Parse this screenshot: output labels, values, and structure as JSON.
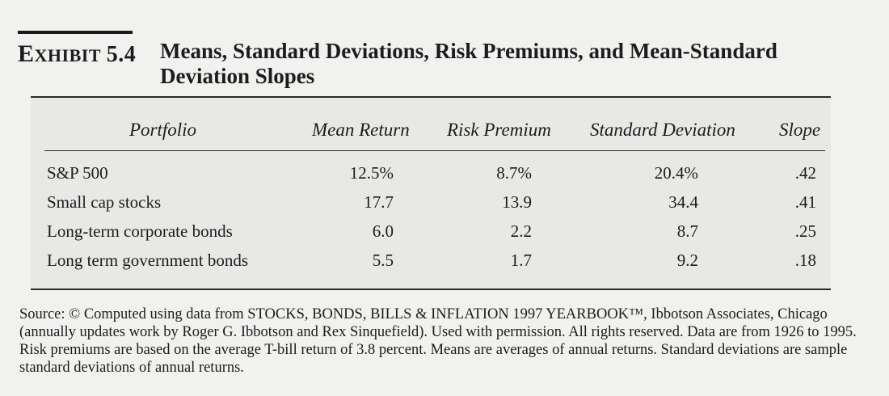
{
  "exhibit": {
    "label_cap": "E",
    "label_small": "XHIBIT",
    "label_num": "5.4",
    "title": "Means, Standard Deviations, Risk Premiums, and Mean-Standard Deviation Slopes"
  },
  "table": {
    "headers": [
      "Portfolio",
      "Mean Return",
      "Risk Premium",
      "Standard Deviation",
      "Slope"
    ],
    "rows": [
      {
        "portfolio": "S&P 500",
        "mean_return": "12.5%",
        "risk_premium": "8.7%",
        "std_dev": "20.4%",
        "slope": ".42"
      },
      {
        "portfolio": "Small cap stocks",
        "mean_return": "17.7",
        "risk_premium": "13.9",
        "std_dev": "34.4",
        "slope": ".41"
      },
      {
        "portfolio": "Long-term corporate bonds",
        "mean_return": "6.0",
        "risk_premium": "2.2",
        "std_dev": "8.7",
        "slope": ".25"
      },
      {
        "portfolio": "Long term government bonds",
        "mean_return": "5.5",
        "risk_premium": "1.7",
        "std_dev": "9.2",
        "slope": ".18"
      }
    ]
  },
  "source_note": "Source: © Computed using data from STOCKS, BONDS, BILLS & INFLATION 1997 YEARBOOK™, Ibbotson Associates, Chicago (annually updates work by Roger G. Ibbotson and Rex Sinquefield). Used with permission. All rights reserved. Data are from 1926 to 1995. Risk premiums are based on the average T-bill return of 3.8 percent. Means are averages of annual returns. Standard deviations are sample standard deviations of annual returns."
}
